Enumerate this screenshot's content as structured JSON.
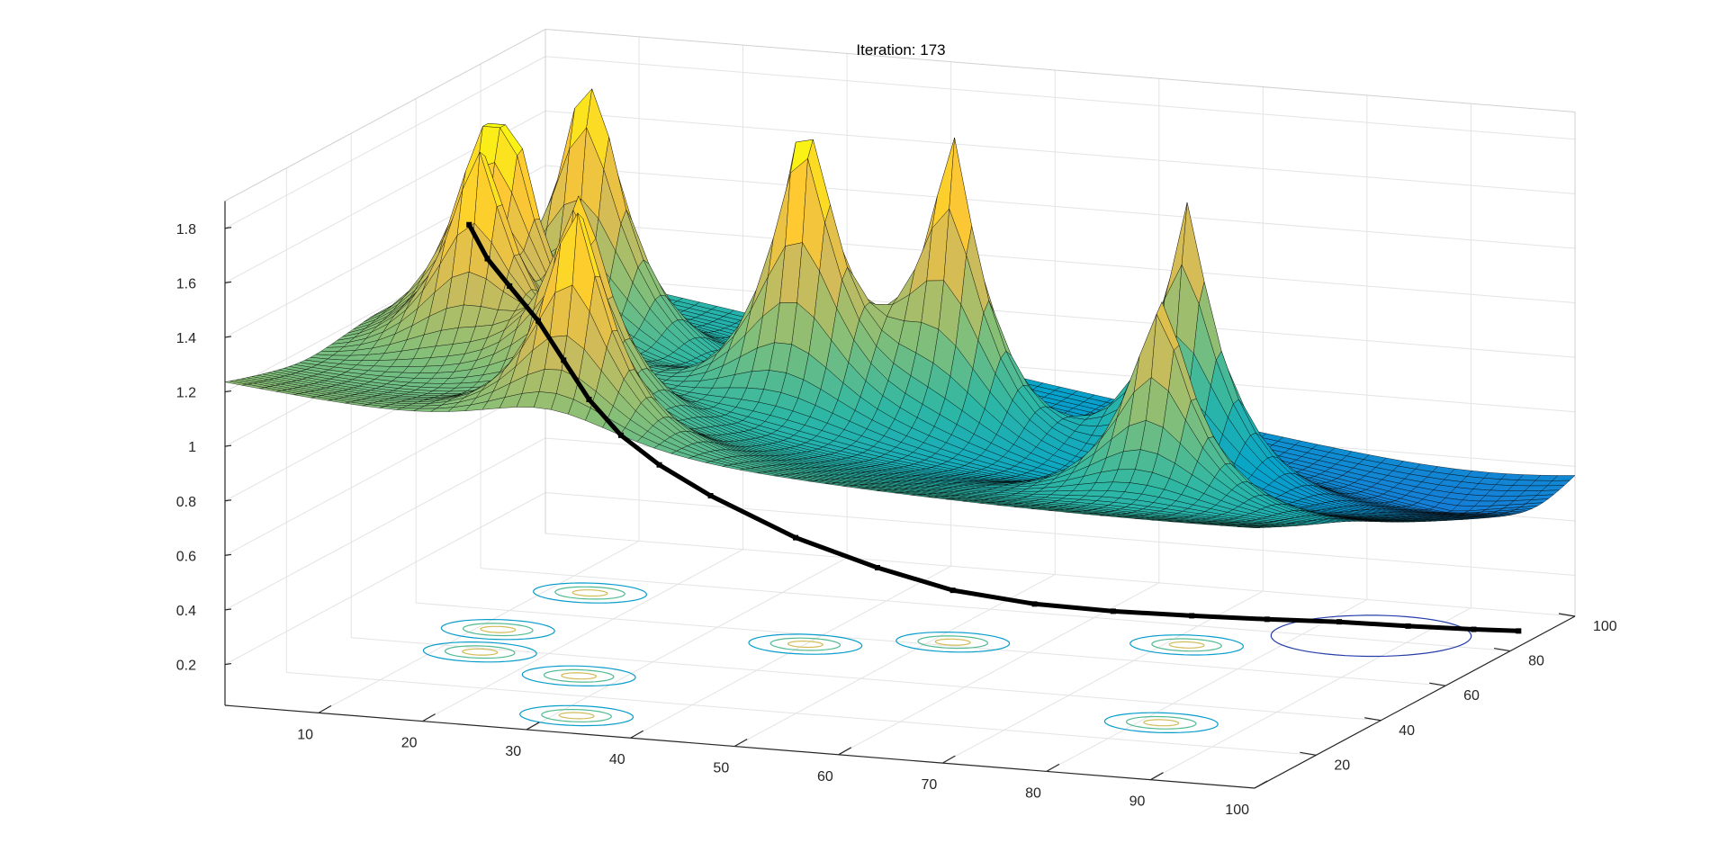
{
  "chart_data": {
    "type": "surface",
    "title": "Iteration: 173",
    "xlabel": "",
    "ylabel": "",
    "zlabel": "",
    "x_ticks": [
      10,
      20,
      30,
      40,
      50,
      60,
      70,
      80,
      90,
      100
    ],
    "y_ticks": [
      20,
      40,
      60,
      80,
      100
    ],
    "z_ticks": [
      0.2,
      0.4,
      0.6,
      0.8,
      1,
      1.2,
      1.4,
      1.6,
      1.8
    ],
    "xlim": [
      1,
      100
    ],
    "ylim": [
      1,
      100
    ],
    "zlim": [
      0.05,
      1.9
    ],
    "grid": true,
    "colormap": "parula",
    "colormap_stops": [
      "#352a87",
      "#0f5cdd",
      "#1481d6",
      "#06a4ca",
      "#2eb7a4",
      "#87bf77",
      "#d1bb59",
      "#fec832",
      "#f9fb0e"
    ],
    "edge_color": "#000000",
    "base_level": 0.5,
    "background_slope": 0.006,
    "peaks": [
      {
        "x": 12,
        "y": 50,
        "height": 1.3
      },
      {
        "x": 14,
        "y": 72,
        "height": 1.2
      },
      {
        "x": 40,
        "y": 55,
        "height": 1.3
      },
      {
        "x": 52,
        "y": 62,
        "height": 1.2
      },
      {
        "x": 26,
        "y": 30,
        "height": 0.9
      },
      {
        "x": 32,
        "y": 10,
        "height": 1.0
      },
      {
        "x": 14,
        "y": 38,
        "height": 0.9
      },
      {
        "x": 72,
        "y": 70,
        "height": 1.1
      },
      {
        "x": 82,
        "y": 30,
        "height": 0.9
      }
    ],
    "path": {
      "color": "#000000",
      "points": [
        [
          3,
          70,
          1.38
        ],
        [
          6,
          66,
          1.29
        ],
        [
          10,
          60,
          1.24
        ],
        [
          14,
          56,
          1.15
        ],
        [
          18,
          51,
          1.05
        ],
        [
          22,
          46,
          0.95
        ],
        [
          26,
          43,
          0.85
        ],
        [
          30,
          42,
          0.76
        ],
        [
          34,
          45,
          0.64
        ],
        [
          40,
          52,
          0.46
        ],
        [
          46,
          58,
          0.33
        ],
        [
          52,
          62,
          0.24
        ],
        [
          58,
          68,
          0.17
        ],
        [
          64,
          73,
          0.13
        ],
        [
          70,
          78,
          0.1
        ],
        [
          76,
          82,
          0.08
        ],
        [
          82,
          85,
          0.07
        ],
        [
          88,
          87,
          0.06
        ],
        [
          94,
          88,
          0.06
        ],
        [
          98,
          89,
          0.06
        ]
      ]
    }
  }
}
